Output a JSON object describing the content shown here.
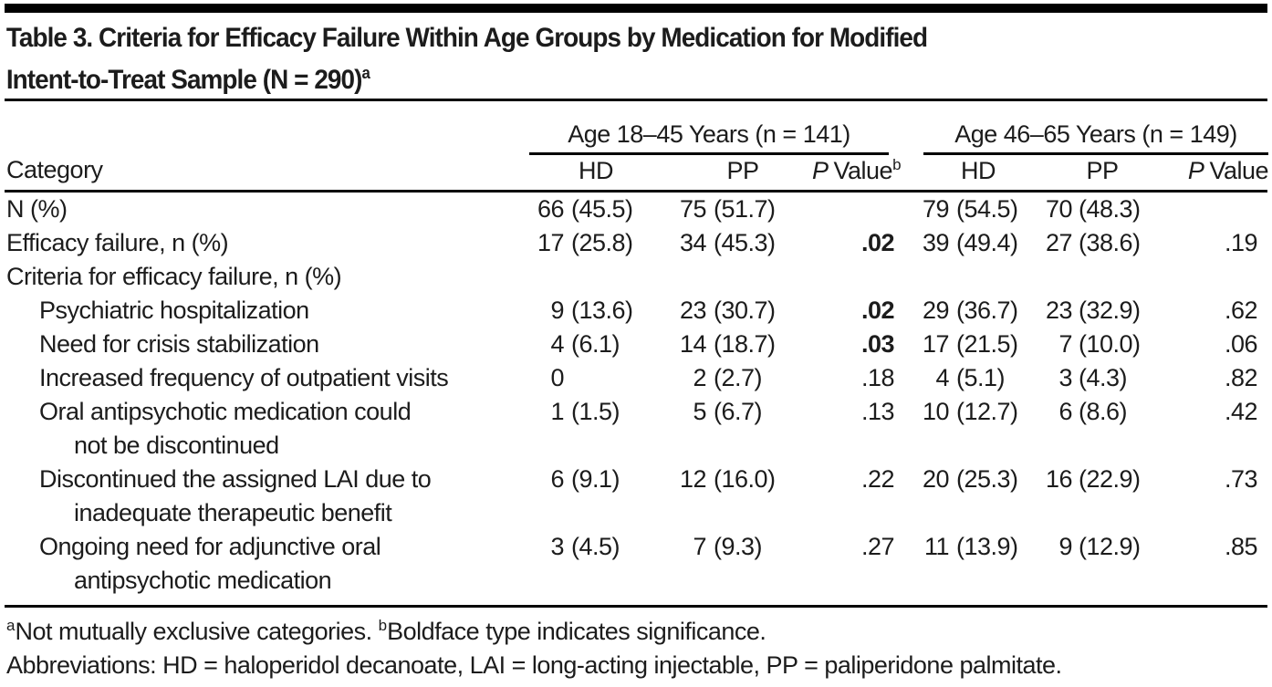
{
  "colors": {
    "text": "#1c1c1c",
    "rule": "#000000",
    "background": "#ffffff"
  },
  "title": {
    "line1": "Table 3. Criteria for Efficacy Failure Within Age Groups by Medication for Modified",
    "line2": "Intent-to-Treat Sample (N = 290)",
    "line2_sup": "a"
  },
  "table": {
    "category_header": "Category",
    "groups": [
      {
        "label": "Age 18–45 Years (n = 141)",
        "cols": [
          {
            "label": "HD"
          },
          {
            "label": "PP"
          },
          {
            "p": "P",
            "rest": "Value",
            "sup": "b"
          }
        ]
      },
      {
        "label": "Age 46–65 Years (n = 149)",
        "cols": [
          {
            "label": "HD"
          },
          {
            "label": "PP"
          },
          {
            "p": "P",
            "rest": "Value",
            "sup": ""
          }
        ]
      }
    ],
    "rows": [
      {
        "label": "N (%)",
        "indent": 0,
        "cells": [
          "66 (45.5)",
          "75 (51.7)",
          "",
          "79 (54.5)",
          "70 (48.3)",
          ""
        ],
        "bold": []
      },
      {
        "label": "Efficacy failure, n (%)",
        "indent": 0,
        "cells": [
          "17 (25.8)",
          "34 (45.3)",
          ".02",
          "39 (49.4)",
          "27 (38.6)",
          ".19"
        ],
        "bold": [
          2
        ]
      },
      {
        "label": "Criteria for efficacy failure, n (%)",
        "indent": 0,
        "cells": [
          "",
          "",
          "",
          "",
          "",
          ""
        ],
        "bold": []
      },
      {
        "label": "Psychiatric hospitalization",
        "indent": 1,
        "cells": [
          "9 (13.6)",
          "23 (30.7)",
          ".02",
          "29 (36.7)",
          "23 (32.9)",
          ".62"
        ],
        "bold": [
          2
        ]
      },
      {
        "label": "Need for crisis stabilization",
        "indent": 1,
        "cells": [
          "4 (6.1)",
          "14 (18.7)",
          ".03",
          "17 (21.5)",
          "7 (10.0)",
          ".06"
        ],
        "bold": [
          2
        ]
      },
      {
        "label": "Increased frequency of outpatient visits",
        "indent": 1,
        "cells": [
          "0",
          "2 (2.7)",
          ".18",
          "4 (5.1)",
          "3 (4.3)",
          ".82"
        ],
        "bold": []
      },
      {
        "label": "Oral antipsychotic medication could",
        "label2": "not be discontinued",
        "indent": 1,
        "cells": [
          "1 (1.5)",
          "5 (6.7)",
          ".13",
          "10 (12.7)",
          "6 (8.6)",
          ".42"
        ],
        "bold": []
      },
      {
        "label": "Discontinued the assigned LAI due to",
        "label2": "inadequate therapeutic benefit",
        "indent": 1,
        "cells": [
          "6 (9.1)",
          "12 (16.0)",
          ".22",
          "20 (25.3)",
          "16 (22.9)",
          ".73"
        ],
        "bold": []
      },
      {
        "label": "Ongoing need for adjunctive oral",
        "label2": "antipsychotic medication",
        "indent": 1,
        "cells": [
          "3 (4.5)",
          "7 (9.3)",
          ".27",
          "11 (13.9)",
          "9 (12.9)",
          ".85"
        ],
        "bold": []
      }
    ]
  },
  "footnotes": {
    "line1": [
      {
        "sup": "a",
        "text": "Not mutually exclusive categories. "
      },
      {
        "sup": "b",
        "text": "Boldface type indicates significance."
      }
    ],
    "line2": "Abbreviations: HD = haloperidol decanoate, LAI = long-acting injectable, PP = paliperidone palmitate."
  }
}
